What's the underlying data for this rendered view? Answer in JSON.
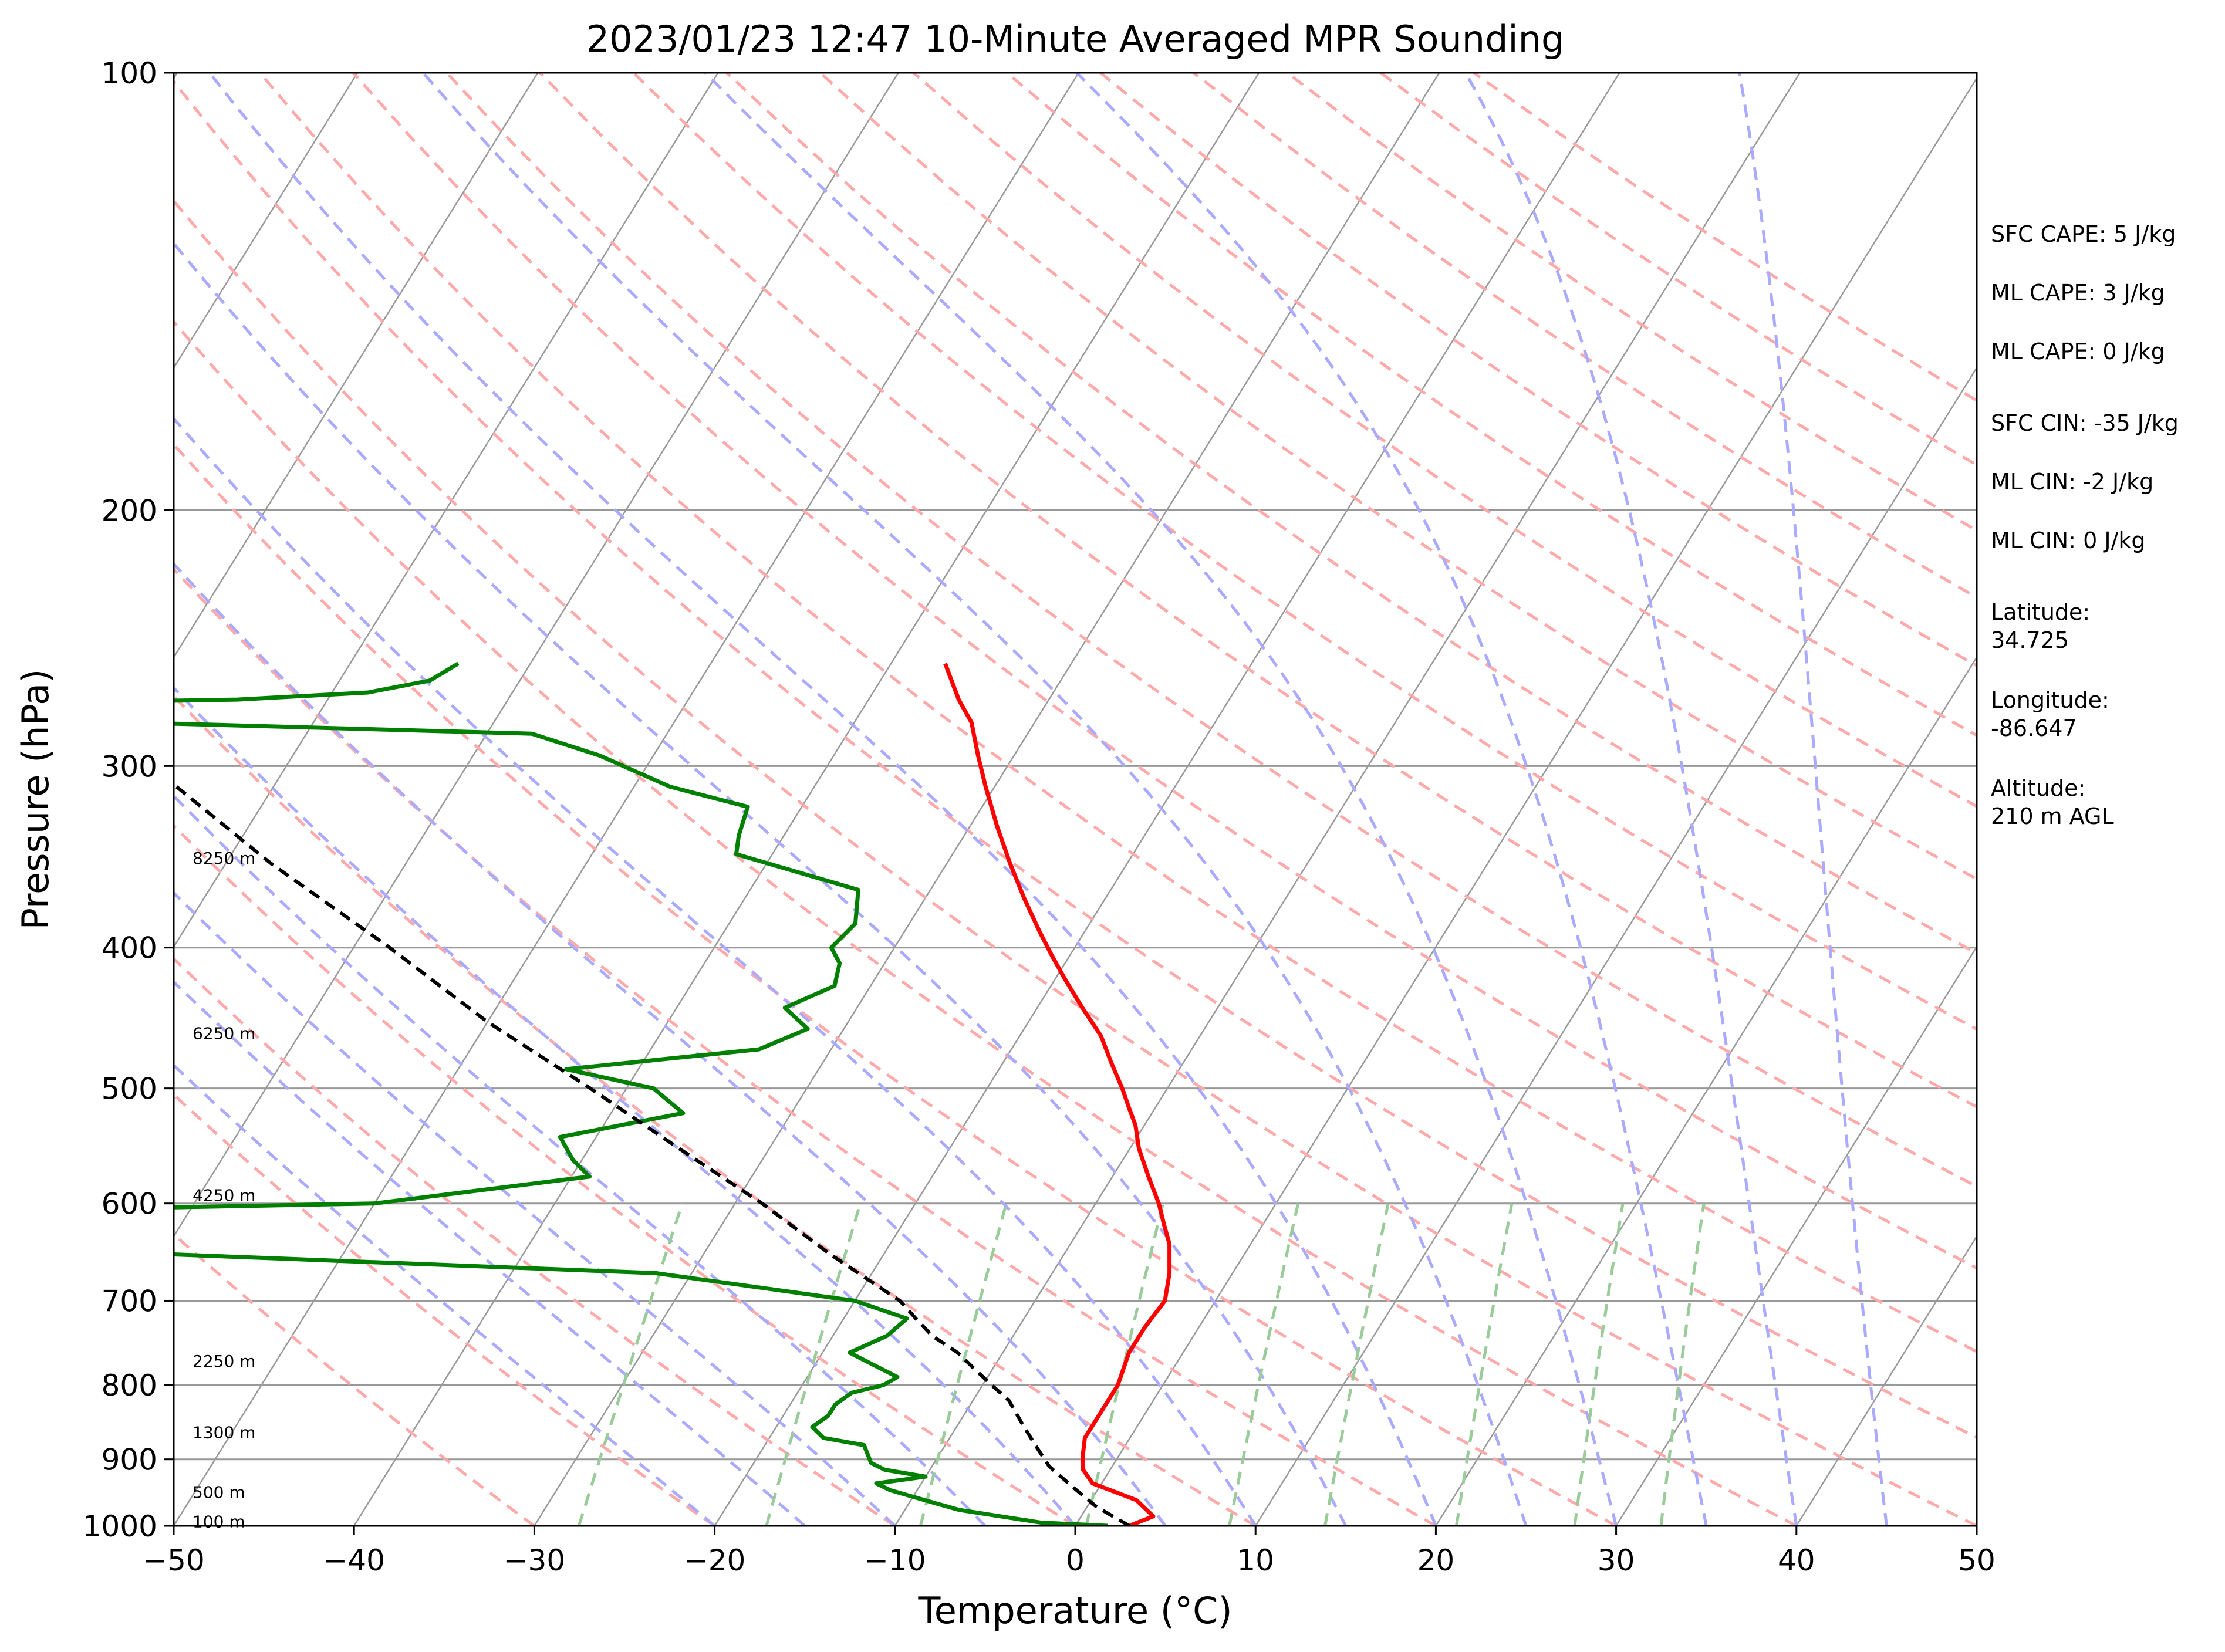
{
  "chart_data": {
    "type": "skew-t",
    "title": "2023/01/23 12:47 10-Minute Averaged MPR Sounding",
    "xlabel": "Temperature (°C)",
    "ylabel": "Pressure (hPa)",
    "xlim": [
      -50,
      50
    ],
    "ylim": [
      1000,
      100
    ],
    "y_scale": "log",
    "x_ticks": [
      "−50",
      "−40",
      "−30",
      "−20",
      "−10",
      "0",
      "10",
      "20",
      "30",
      "40",
      "50"
    ],
    "y_ticks": [
      "1000",
      "900",
      "800",
      "700",
      "600",
      "500",
      "400",
      "300",
      "200",
      "100"
    ],
    "grid": true,
    "colors": {
      "temperature": "#ff0000",
      "dewpoint": "#008000",
      "parcel": "#000000",
      "dry_adiabat": "#ffaaaa",
      "moist_adiabat": "#aaaaff",
      "mixing_ratio": "#99cc99",
      "isotherm": "#999999"
    },
    "series": [
      {
        "key": "temperature",
        "points": [
          [
            3.0,
            1000
          ],
          [
            4.0,
            985
          ],
          [
            2.5,
            960
          ],
          [
            -0.5,
            935
          ],
          [
            -1.5,
            915
          ],
          [
            -2.0,
            895
          ],
          [
            -2.5,
            870
          ],
          [
            -2.5,
            850
          ],
          [
            -2.5,
            820
          ],
          [
            -2.5,
            800
          ],
          [
            -3.0,
            760
          ],
          [
            -3.0,
            730
          ],
          [
            -2.8,
            700
          ],
          [
            -3.5,
            670
          ],
          [
            -4.5,
            640
          ],
          [
            -5.5,
            620
          ],
          [
            -6.5,
            600
          ],
          [
            -8.0,
            575
          ],
          [
            -9.5,
            550
          ],
          [
            -10.5,
            530
          ],
          [
            -11.5,
            515
          ],
          [
            -12.5,
            500
          ],
          [
            -14.0,
            480
          ],
          [
            -15.5,
            460
          ],
          [
            -17.5,
            440
          ],
          [
            -19.5,
            420
          ],
          [
            -21.0,
            405
          ],
          [
            -22.5,
            390
          ],
          [
            -24.5,
            370
          ],
          [
            -26.5,
            350
          ],
          [
            -28.5,
            330
          ],
          [
            -30.5,
            310
          ],
          [
            -32.0,
            295
          ],
          [
            -33.5,
            280
          ],
          [
            -35.0,
            270
          ],
          [
            -37.0,
            255
          ]
        ]
      },
      {
        "key": "dewpoint",
        "points": [
          [
            1.8,
            1000
          ],
          [
            -2.0,
            995
          ],
          [
            -4.5,
            985
          ],
          [
            -7.0,
            975
          ],
          [
            -8.5,
            965
          ],
          [
            -10.0,
            955
          ],
          [
            -11.5,
            945
          ],
          [
            -12.5,
            935
          ],
          [
            -10.0,
            925
          ],
          [
            -12.5,
            915
          ],
          [
            -13.5,
            905
          ],
          [
            -14.5,
            880
          ],
          [
            -17.0,
            870
          ],
          [
            -18.0,
            855
          ],
          [
            -17.5,
            840
          ],
          [
            -17.5,
            825
          ],
          [
            -17.0,
            810
          ],
          [
            -15.5,
            800
          ],
          [
            -15.0,
            790
          ],
          [
            -18.5,
            760
          ],
          [
            -17.0,
            740
          ],
          [
            -16.5,
            720
          ],
          [
            -20.0,
            700
          ],
          [
            -32.0,
            670
          ],
          [
            -60.0,
            650
          ],
          [
            -120.0,
            648
          ],
          [
            -80.0,
            610
          ],
          [
            -50.0,
            600
          ],
          [
            -39.0,
            575
          ],
          [
            -40.5,
            560
          ],
          [
            -42.0,
            540
          ],
          [
            -36.0,
            520
          ],
          [
            -38.5,
            500
          ],
          [
            -44.0,
            485
          ],
          [
            -34.0,
            470
          ],
          [
            -32.0,
            455
          ],
          [
            -34.0,
            440
          ],
          [
            -32.0,
            425
          ],
          [
            -32.5,
            410
          ],
          [
            -33.5,
            400
          ],
          [
            -33.0,
            385
          ],
          [
            -34.0,
            365
          ],
          [
            -42.0,
            345
          ],
          [
            -42.5,
            335
          ],
          [
            -43.0,
            320
          ],
          [
            -48.0,
            310
          ],
          [
            -53.0,
            295
          ],
          [
            -57.5,
            285
          ],
          [
            -80.0,
            280
          ],
          [
            -90.0,
            272
          ],
          [
            -75.0,
            270
          ],
          [
            -68.0,
            267
          ],
          [
            -65.0,
            262
          ],
          [
            -64.0,
            255
          ]
        ]
      },
      {
        "key": "parcel",
        "points": [
          [
            3.0,
            1000
          ],
          [
            0.5,
            970
          ],
          [
            -1.5,
            940
          ],
          [
            -3.5,
            910
          ],
          [
            -5.0,
            880
          ],
          [
            -6.5,
            850
          ],
          [
            -8.0,
            820
          ],
          [
            -9.5,
            800
          ],
          [
            -11.0,
            780
          ],
          [
            -12.5,
            760
          ],
          [
            -14.5,
            740
          ],
          [
            -16.0,
            720
          ],
          [
            -17.5,
            700
          ],
          [
            -23.0,
            650
          ],
          [
            -28.5,
            600
          ],
          [
            -35.0,
            550
          ],
          [
            -42.0,
            500
          ],
          [
            -50.0,
            450
          ],
          [
            -58.0,
            400
          ],
          [
            -67.5,
            350
          ],
          [
            -77.5,
            300
          ],
          [
            -82.0,
            280
          ],
          [
            -86.0,
            265
          ]
        ]
      }
    ],
    "altitude_labels": [
      {
        "text": "100 m",
        "p": 993
      },
      {
        "text": "500 m",
        "p": 948
      },
      {
        "text": "1300 m",
        "p": 862
      },
      {
        "text": "2250 m",
        "p": 770
      },
      {
        "text": "4250 m",
        "p": 592
      },
      {
        "text": "6250 m",
        "p": 458
      },
      {
        "text": "8250 m",
        "p": 347
      }
    ],
    "stats": [
      "SFC CAPE: 5 J/kg",
      "ML CAPE: 3 J/kg",
      "ML CAPE: 0 J/kg",
      "SFC CIN: -35 J/kg",
      "ML CIN: -2 J/kg",
      "ML CIN: 0 J/kg",
      "Latitude:",
      "34.725",
      "Longitude:",
      "-86.647",
      "Altitude:",
      "210 m AGL"
    ]
  }
}
